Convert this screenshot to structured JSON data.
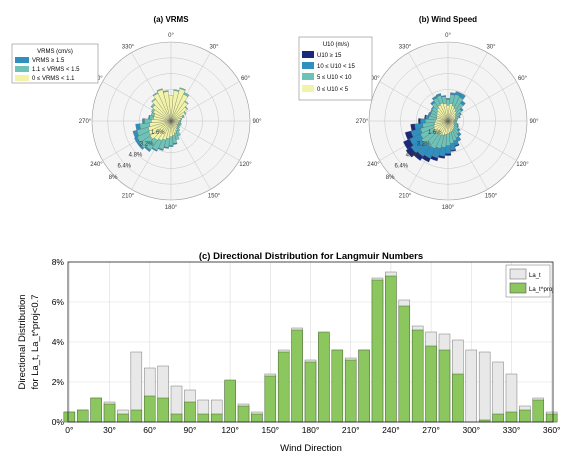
{
  "chart_data": [
    {
      "type": "rose",
      "title": "(a) VRMS",
      "legend": {
        "title": "VRMS (cm/s)",
        "items": [
          "VRMS ≥ 1.5",
          "1.1 ≤ VRMS < 1.5",
          "0 ≤ VRMS < 1.1"
        ],
        "colors": [
          "#2f8fbf",
          "#6dc3b8",
          "#f1f4a8"
        ]
      },
      "angle_labels": [
        "0°",
        "30°",
        "60°",
        "90°",
        "120°",
        "150°",
        "180°",
        "210°",
        "240°",
        "270°",
        "300°",
        "330°"
      ],
      "radial_labels": [
        "1.6%",
        "3.2%",
        "4.8%",
        "6.4%",
        "8%"
      ],
      "rmax": 8,
      "sector_deg": 10,
      "values": {
        "stacked_percent_by_direction_low_mid_high": [
          [
            2.6,
            0.0,
            0.0
          ],
          [
            3.1,
            0.1,
            0.0
          ],
          [
            3.4,
            0.1,
            0.0
          ],
          [
            3.0,
            0.2,
            0.0
          ],
          [
            2.4,
            0.1,
            0.0
          ],
          [
            2.0,
            0.1,
            0.0
          ],
          [
            1.6,
            0.1,
            0.0
          ],
          [
            1.2,
            0.2,
            0.0
          ],
          [
            1.0,
            0.1,
            0.0
          ],
          [
            0.9,
            0.1,
            0.0
          ],
          [
            0.8,
            0.2,
            0.0
          ],
          [
            0.8,
            0.3,
            0.0
          ],
          [
            0.7,
            0.3,
            0.0
          ],
          [
            0.8,
            0.3,
            0.0
          ],
          [
            0.9,
            0.4,
            0.0
          ],
          [
            1.1,
            0.6,
            0.0
          ],
          [
            1.3,
            0.7,
            0.0
          ],
          [
            1.5,
            0.8,
            0.1
          ],
          [
            1.6,
            0.9,
            0.1
          ],
          [
            1.8,
            0.9,
            0.1
          ],
          [
            2.0,
            1.0,
            0.1
          ],
          [
            2.2,
            1.1,
            0.1
          ],
          [
            2.4,
            1.2,
            0.2
          ],
          [
            2.6,
            1.3,
            0.2
          ],
          [
            2.5,
            1.3,
            0.3
          ],
          [
            2.4,
            1.2,
            0.4
          ],
          [
            2.2,
            1.0,
            0.4
          ],
          [
            2.0,
            0.7,
            0.2
          ],
          [
            1.8,
            0.4,
            0.1
          ],
          [
            1.8,
            0.3,
            0.0
          ],
          [
            2.0,
            0.2,
            0.0
          ],
          [
            2.3,
            0.2,
            0.0
          ],
          [
            2.7,
            0.1,
            0.0
          ],
          [
            3.1,
            0.1,
            0.0
          ],
          [
            3.3,
            0.1,
            0.0
          ],
          [
            3.0,
            0.1,
            0.0
          ]
        ]
      }
    },
    {
      "type": "rose",
      "title": "(b) Wind Speed",
      "legend": {
        "title": "U10 (m/s)",
        "items": [
          "U10 ≥ 15",
          "10 ≤ U10 < 15",
          "5 ≤ U10 < 10",
          "0 ≤ U10 < 5"
        ],
        "colors": [
          "#1a2a7a",
          "#2f8fbf",
          "#6dc3b8",
          "#f1f4a8"
        ]
      },
      "angle_labels": [
        "0°",
        "30°",
        "60°",
        "90°",
        "120°",
        "150°",
        "180°",
        "210°",
        "240°",
        "270°",
        "300°",
        "330°"
      ],
      "radial_labels": [
        "1.6%",
        "3.2%",
        "4.8%",
        "6.4%",
        "8%"
      ],
      "rmax": 8,
      "sector_deg": 10,
      "values": {
        "stacked_percent_by_direction_low_mid_high_vhigh": [
          [
            1.6,
            0.6,
            0.1,
            0.0
          ],
          [
            1.8,
            0.9,
            0.2,
            0.0
          ],
          [
            1.6,
            1.2,
            0.3,
            0.0
          ],
          [
            1.4,
            1.3,
            0.4,
            0.0
          ],
          [
            1.2,
            1.0,
            0.3,
            0.0
          ],
          [
            1.0,
            0.7,
            0.2,
            0.0
          ],
          [
            0.9,
            0.5,
            0.1,
            0.0
          ],
          [
            0.8,
            0.4,
            0.1,
            0.0
          ],
          [
            0.7,
            0.3,
            0.0,
            0.0
          ],
          [
            0.6,
            0.3,
            0.0,
            0.0
          ],
          [
            0.6,
            0.3,
            0.0,
            0.0
          ],
          [
            0.7,
            0.3,
            0.1,
            0.0
          ],
          [
            0.7,
            0.4,
            0.1,
            0.0
          ],
          [
            0.8,
            0.5,
            0.2,
            0.0
          ],
          [
            0.9,
            0.7,
            0.3,
            0.0
          ],
          [
            1.0,
            0.9,
            0.4,
            0.0
          ],
          [
            1.1,
            1.0,
            0.5,
            0.1
          ],
          [
            1.2,
            1.1,
            0.7,
            0.1
          ],
          [
            1.3,
            1.2,
            0.8,
            0.2
          ],
          [
            1.4,
            1.3,
            0.9,
            0.2
          ],
          [
            1.5,
            1.4,
            1.0,
            0.3
          ],
          [
            1.6,
            1.5,
            1.1,
            0.4
          ],
          [
            1.6,
            1.6,
            1.2,
            0.5
          ],
          [
            1.7,
            1.6,
            1.3,
            0.6
          ],
          [
            1.6,
            1.5,
            1.2,
            0.7
          ],
          [
            1.5,
            1.4,
            1.0,
            0.6
          ],
          [
            1.4,
            1.2,
            0.8,
            0.4
          ],
          [
            1.3,
            1.0,
            0.5,
            0.2
          ],
          [
            1.2,
            0.8,
            0.3,
            0.1
          ],
          [
            1.2,
            0.7,
            0.2,
            0.0
          ],
          [
            1.3,
            0.6,
            0.1,
            0.0
          ],
          [
            1.4,
            0.6,
            0.1,
            0.0
          ],
          [
            1.6,
            0.7,
            0.2,
            0.0
          ],
          [
            1.8,
            0.8,
            0.2,
            0.0
          ],
          [
            1.9,
            0.8,
            0.2,
            0.0
          ],
          [
            1.8,
            0.7,
            0.1,
            0.0
          ]
        ]
      }
    },
    {
      "type": "bar",
      "title": "(c) Directional Distribution for Langmuir Numbers",
      "xlabel": "Wind Direction",
      "ylabel_line1": "Directional Distribution",
      "ylabel_line2": "for La_t, La_t^proj<0.7",
      "ylim": [
        0,
        8
      ],
      "xlim": [
        -1,
        361
      ],
      "yticks": [
        "0%",
        "2%",
        "4%",
        "6%",
        "8%"
      ],
      "xticks": [
        "0°",
        "30°",
        "60°",
        "90°",
        "120°",
        "150°",
        "180°",
        "210°",
        "240°",
        "270°",
        "300°",
        "330°",
        "360°"
      ],
      "x": [
        0,
        10,
        20,
        30,
        40,
        50,
        60,
        70,
        80,
        90,
        100,
        110,
        120,
        130,
        140,
        150,
        160,
        170,
        180,
        190,
        200,
        210,
        220,
        230,
        240,
        250,
        260,
        270,
        280,
        290,
        300,
        310,
        320,
        330,
        340,
        350,
        360
      ],
      "series": [
        {
          "name": "La_t",
          "color": "#e8e8e8",
          "values": [
            0.5,
            0.6,
            1.2,
            1.0,
            0.6,
            3.5,
            2.7,
            2.8,
            1.8,
            1.6,
            1.1,
            1.1,
            2.0,
            0.9,
            0.5,
            2.4,
            3.6,
            4.7,
            3.1,
            4.4,
            3.6,
            3.2,
            3.6,
            7.2,
            7.5,
            6.1,
            4.8,
            4.5,
            4.4,
            4.1,
            3.6,
            3.5,
            3.0,
            2.4,
            0.8,
            1.2,
            0.5
          ]
        },
        {
          "name": "La_t^proj",
          "color": "#8cc65e",
          "values": [
            0.5,
            0.6,
            1.2,
            0.9,
            0.4,
            0.6,
            1.3,
            1.2,
            0.4,
            1.0,
            0.4,
            0.4,
            2.1,
            0.8,
            0.4,
            2.3,
            3.5,
            4.6,
            3.0,
            4.5,
            3.6,
            3.1,
            3.6,
            7.1,
            7.3,
            5.8,
            4.6,
            3.8,
            3.6,
            2.4,
            0.0,
            0.1,
            0.4,
            0.5,
            0.6,
            1.1,
            0.4
          ]
        }
      ],
      "legend": [
        "La_t",
        "La_t^proj"
      ]
    }
  ]
}
